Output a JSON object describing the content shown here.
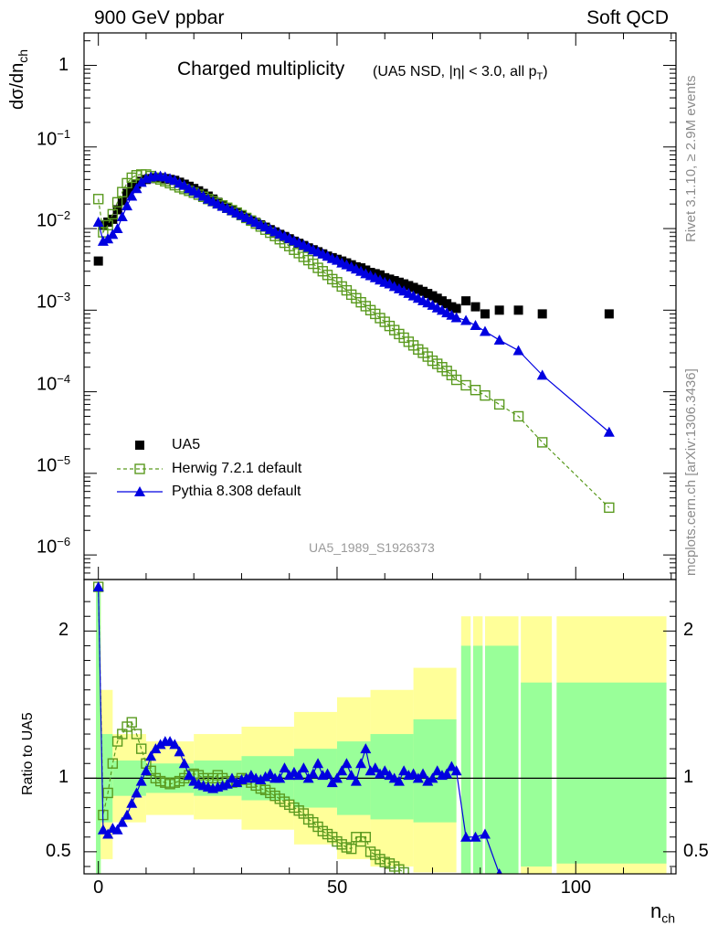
{
  "header": {
    "left": "900 GeV ppbar",
    "right": "Soft QCD",
    "side_top": "Rivet 3.1.10, ≥ 2.9M events",
    "side_bottom": "mcplots.cern.ch [arXiv:1306.3436]"
  },
  "colors": {
    "data": "#000000",
    "herwig": "#5a9a1f",
    "pythia": "#0000e0",
    "band_inner": "#99ff99",
    "band_outer": "#ffff99"
  },
  "icons": {
    "data": "filled-square-marker-icon",
    "herwig": "open-square-marker-icon",
    "pythia": "filled-triangle-marker-icon"
  },
  "chart_data": [
    {
      "type": "scatter",
      "panel": "main",
      "title_main": "Charged multiplicity",
      "title_sub": "(UA5 NSD, |η| < 3.0, all p",
      "title_sub_sub": "T",
      "title_sub_end": ")",
      "ylabel": "dσ/dn",
      "ylabel_sub": "ch",
      "yscale": "log",
      "ylim": [
        5e-07,
        2.5
      ],
      "xlim": [
        -3,
        121
      ],
      "y_ticks": [
        {
          "v": 1,
          "base": "1",
          "exp": ""
        },
        {
          "v": 0.1,
          "base": "10",
          "exp": "−1"
        },
        {
          "v": 0.01,
          "base": "10",
          "exp": "−2"
        },
        {
          "v": 0.001,
          "base": "10",
          "exp": "−3"
        },
        {
          "v": 0.0001,
          "base": "10",
          "exp": "−4"
        },
        {
          "v": 1e-05,
          "base": "10",
          "exp": "−5"
        },
        {
          "v": 1e-06,
          "base": "10",
          "exp": "−6"
        }
      ],
      "analysis_label": "UA5_1989_S1926373",
      "legend": [
        "UA5",
        "Herwig 7.2.1 default",
        "Pythia 8.308 default"
      ],
      "series": [
        {
          "name": "UA5",
          "marker": "filled-square",
          "x": [
            0,
            1,
            2,
            3,
            4,
            5,
            6,
            7,
            8,
            9,
            10,
            11,
            12,
            13,
            14,
            15,
            16,
            17,
            18,
            19,
            20,
            21,
            22,
            23,
            24,
            25,
            26,
            27,
            28,
            29,
            30,
            31,
            32,
            33,
            34,
            35,
            36,
            37,
            38,
            39,
            40,
            41,
            42,
            43,
            44,
            45,
            46,
            47,
            48,
            49,
            50,
            51,
            52,
            53,
            54,
            55,
            56,
            57,
            58,
            59,
            60,
            61,
            62,
            63,
            64,
            65,
            66,
            67,
            68,
            69,
            70,
            71,
            72,
            73,
            74,
            75,
            77,
            79,
            81,
            84,
            88,
            93,
            107
          ],
          "y": [
            0.004,
            0.011,
            0.012,
            0.013,
            0.017,
            0.022,
            0.027,
            0.032,
            0.035,
            0.038,
            0.04,
            0.041,
            0.042,
            0.042,
            0.041,
            0.04,
            0.039,
            0.037,
            0.035,
            0.033,
            0.031,
            0.029,
            0.027,
            0.025,
            0.023,
            0.021,
            0.0195,
            0.018,
            0.0168,
            0.0157,
            0.0146,
            0.0136,
            0.0127,
            0.0119,
            0.0111,
            0.0104,
            0.0097,
            0.0091,
            0.0085,
            0.008,
            0.0075,
            0.007,
            0.0066,
            0.0062,
            0.0058,
            0.0055,
            0.0052,
            0.0049,
            0.0046,
            0.0044,
            0.0042,
            0.004,
            0.0038,
            0.0036,
            0.0034,
            0.0033,
            0.0031,
            0.0029,
            0.0028,
            0.0027,
            0.0025,
            0.0024,
            0.0023,
            0.0022,
            0.0021,
            0.002,
            0.0019,
            0.0018,
            0.0017,
            0.0016,
            0.0015,
            0.0014,
            0.0013,
            0.0012,
            0.0011,
            0.00105,
            0.0013,
            0.0011,
            0.0009,
            0.001,
            0.001,
            0.0009,
            0.0009
          ]
        },
        {
          "name": "Herwig 7.2.1 default",
          "marker": "open-square",
          "x": [
            0,
            1,
            2,
            3,
            4,
            5,
            6,
            7,
            8,
            9,
            10,
            11,
            12,
            13,
            14,
            15,
            16,
            17,
            18,
            19,
            20,
            21,
            22,
            23,
            24,
            25,
            26,
            27,
            28,
            29,
            30,
            31,
            32,
            33,
            34,
            35,
            36,
            37,
            38,
            39,
            40,
            41,
            42,
            43,
            44,
            45,
            46,
            47,
            48,
            49,
            50,
            51,
            52,
            53,
            54,
            55,
            56,
            57,
            58,
            59,
            60,
            61,
            62,
            63,
            64,
            65,
            66,
            67,
            68,
            69,
            70,
            71,
            72,
            73,
            74,
            75,
            77,
            79,
            81,
            84,
            88,
            93,
            107
          ],
          "y": [
            0.023,
            0.009,
            0.011,
            0.015,
            0.021,
            0.028,
            0.036,
            0.042,
            0.045,
            0.046,
            0.046,
            0.044,
            0.042,
            0.04,
            0.038,
            0.036,
            0.034,
            0.032,
            0.0305,
            0.029,
            0.0275,
            0.026,
            0.0245,
            0.023,
            0.0217,
            0.0204,
            0.0192,
            0.018,
            0.0168,
            0.0157,
            0.0146,
            0.0135,
            0.0125,
            0.0115,
            0.0106,
            0.0097,
            0.0089,
            0.0081,
            0.0074,
            0.0067,
            0.0061,
            0.0055,
            0.005,
            0.0045,
            0.0041,
            0.0037,
            0.0033,
            0.003,
            0.0027,
            0.0024,
            0.0022,
            0.00195,
            0.00175,
            0.00155,
            0.0014,
            0.00125,
            0.00112,
            0.001,
            0.0009,
            0.0008,
            0.00072,
            0.00064,
            0.00057,
            0.00051,
            0.00046,
            0.00041,
            0.00037,
            0.00033,
            0.0003,
            0.00027,
            0.00024,
            0.00022,
            0.0002,
            0.00018,
            0.00016,
            0.00014,
            0.00012,
            0.000105,
            9e-05,
            7e-05,
            5e-05,
            2.4e-05,
            3.8e-06
          ]
        },
        {
          "name": "Pythia 8.308 default",
          "marker": "filled-triangle",
          "x": [
            0,
            1,
            2,
            3,
            4,
            5,
            6,
            7,
            8,
            9,
            10,
            11,
            12,
            13,
            14,
            15,
            16,
            17,
            18,
            19,
            20,
            21,
            22,
            23,
            24,
            25,
            26,
            27,
            28,
            29,
            30,
            31,
            32,
            33,
            34,
            35,
            36,
            37,
            38,
            39,
            40,
            41,
            42,
            43,
            44,
            45,
            46,
            47,
            48,
            49,
            50,
            51,
            52,
            53,
            54,
            55,
            56,
            57,
            58,
            59,
            60,
            61,
            62,
            63,
            64,
            65,
            66,
            67,
            68,
            69,
            70,
            71,
            72,
            73,
            74,
            75,
            77,
            79,
            81,
            84,
            88,
            93,
            107
          ],
          "y": [
            0.012,
            0.007,
            0.0075,
            0.0085,
            0.01,
            0.014,
            0.019,
            0.025,
            0.031,
            0.037,
            0.041,
            0.043,
            0.044,
            0.044,
            0.043,
            0.041,
            0.039,
            0.036,
            0.034,
            0.031,
            0.029,
            0.027,
            0.025,
            0.023,
            0.0215,
            0.02,
            0.0188,
            0.0177,
            0.0166,
            0.0156,
            0.0146,
            0.0137,
            0.0128,
            0.012,
            0.0112,
            0.0105,
            0.0098,
            0.0092,
            0.0086,
            0.0081,
            0.0076,
            0.0071,
            0.0067,
            0.0063,
            0.0059,
            0.0055,
            0.0052,
            0.0049,
            0.0046,
            0.0043,
            0.0041,
            0.0038,
            0.0036,
            0.0034,
            0.0032,
            0.003,
            0.0028,
            0.00265,
            0.0025,
            0.00235,
            0.0022,
            0.0021,
            0.00195,
            0.00183,
            0.00172,
            0.00161,
            0.0015,
            0.0014,
            0.00131,
            0.00123,
            0.00115,
            0.00107,
            0.001,
            0.00093,
            0.00087,
            0.00081,
            0.00075,
            0.00065,
            0.00055,
            0.00043,
            0.00032,
            0.00016,
            3.2e-05
          ]
        }
      ]
    },
    {
      "type": "scatter",
      "panel": "ratio",
      "ylabel": "Ratio to UA5",
      "xlabel": "n",
      "xlabel_sub": "ch",
      "ylim": [
        0.35,
        2.35
      ],
      "xlim": [
        -3,
        121
      ],
      "y_ticks": [
        {
          "v": 0.5,
          "label": "0.5"
        },
        {
          "v": 1,
          "label": "1"
        },
        {
          "v": 2,
          "label": "2"
        }
      ],
      "x_ticks": [
        {
          "v": 0,
          "label": "0"
        },
        {
          "v": 50,
          "label": "50"
        },
        {
          "v": 100,
          "label": "100"
        }
      ],
      "bands": [
        {
          "x0": -0.5,
          "x1": 0.5,
          "inner": [
            0.3,
            2.3
          ],
          "outer": [
            0.3,
            2.3
          ]
        },
        {
          "x0": 0.5,
          "x1": 3,
          "inner": [
            0.7,
            1.3
          ],
          "outer": [
            0.45,
            1.6
          ]
        },
        {
          "x0": 3,
          "x1": 10,
          "inner": [
            0.88,
            1.12
          ],
          "outer": [
            0.7,
            1.3
          ]
        },
        {
          "x0": 10,
          "x1": 20,
          "inner": [
            0.9,
            1.1
          ],
          "outer": [
            0.75,
            1.25
          ]
        },
        {
          "x0": 20,
          "x1": 30,
          "inner": [
            0.88,
            1.12
          ],
          "outer": [
            0.72,
            1.3
          ]
        },
        {
          "x0": 30,
          "x1": 41,
          "inner": [
            0.85,
            1.15
          ],
          "outer": [
            0.65,
            1.35
          ]
        },
        {
          "x0": 41,
          "x1": 50,
          "inner": [
            0.8,
            1.2
          ],
          "outer": [
            0.55,
            1.45
          ]
        },
        {
          "x0": 50,
          "x1": 57,
          "inner": [
            0.75,
            1.25
          ],
          "outer": [
            0.45,
            1.55
          ]
        },
        {
          "x0": 57,
          "x1": 66,
          "inner": [
            0.72,
            1.3
          ],
          "outer": [
            0.4,
            1.6
          ]
        },
        {
          "x0": 66,
          "x1": 75,
          "inner": [
            0.7,
            1.4
          ],
          "outer": [
            0.36,
            1.75
          ]
        },
        {
          "x0": 76,
          "x1": 78,
          "inner": [
            0.35,
            1.9
          ],
          "outer": [
            0.35,
            2.1
          ]
        },
        {
          "x0": 78.5,
          "x1": 80.5,
          "inner": [
            0.35,
            1.9
          ],
          "outer": [
            0.35,
            2.1
          ]
        },
        {
          "x0": 81,
          "x1": 88,
          "inner": [
            0.35,
            1.9
          ],
          "outer": [
            0.35,
            2.1
          ]
        },
        {
          "x0": 88.5,
          "x1": 95,
          "inner": [
            0.4,
            1.65
          ],
          "outer": [
            0.35,
            2.1
          ]
        },
        {
          "x0": 96,
          "x1": 119,
          "inner": [
            0.42,
            1.65
          ],
          "outer": [
            0.35,
            2.1
          ]
        }
      ],
      "series": [
        {
          "name": "Herwig 7.2.1 default",
          "x": [
            0,
            1,
            2,
            3,
            4,
            5,
            6,
            7,
            8,
            9,
            10,
            11,
            12,
            13,
            14,
            15,
            16,
            17,
            18,
            19,
            20,
            21,
            22,
            23,
            24,
            25,
            26,
            27,
            28,
            29,
            30,
            31,
            32,
            33,
            34,
            35,
            36,
            37,
            38,
            39,
            40,
            41,
            42,
            43,
            44,
            45,
            46,
            47,
            48,
            49,
            50,
            51,
            52,
            53,
            54,
            55,
            56,
            57,
            58,
            59,
            60,
            61,
            62,
            63,
            64
          ],
          "y": [
            2.3,
            0.75,
            0.9,
            1.1,
            1.25,
            1.3,
            1.35,
            1.38,
            1.3,
            1.2,
            1.1,
            1.05,
            1.0,
            0.98,
            0.97,
            0.96,
            0.97,
            0.98,
            1.0,
            1.02,
            1.03,
            1.02,
            1.0,
            0.98,
            1.0,
            1.02,
            1.0,
            0.98,
            0.97,
            0.98,
            1.0,
            0.99,
            0.97,
            0.95,
            0.93,
            0.92,
            0.9,
            0.88,
            0.86,
            0.84,
            0.82,
            0.8,
            0.78,
            0.76,
            0.72,
            0.7,
            0.67,
            0.64,
            0.62,
            0.6,
            0.57,
            0.55,
            0.53,
            0.52,
            0.6,
            0.57,
            0.6,
            0.5,
            0.48,
            0.45,
            0.43,
            0.42,
            0.4,
            0.38,
            0.36
          ]
        },
        {
          "name": "Pythia 8.308 default",
          "x": [
            0,
            1,
            2,
            3,
            4,
            5,
            6,
            7,
            8,
            9,
            10,
            11,
            12,
            13,
            14,
            15,
            16,
            17,
            18,
            19,
            20,
            21,
            22,
            23,
            24,
            25,
            26,
            27,
            28,
            29,
            30,
            31,
            32,
            33,
            34,
            35,
            36,
            37,
            38,
            39,
            40,
            41,
            42,
            43,
            44,
            45,
            46,
            47,
            48,
            49,
            50,
            51,
            52,
            53,
            54,
            55,
            56,
            57,
            58,
            59,
            60,
            61,
            62,
            63,
            64,
            65,
            66,
            67,
            68,
            69,
            70,
            71,
            72,
            73,
            74,
            75,
            77,
            79,
            81,
            84
          ],
          "y": [
            2.3,
            0.65,
            0.62,
            0.66,
            0.65,
            0.7,
            0.75,
            0.83,
            0.9,
            0.98,
            1.05,
            1.15,
            1.2,
            1.23,
            1.25,
            1.25,
            1.23,
            1.18,
            1.1,
            1.02,
            0.98,
            0.96,
            0.95,
            0.94,
            0.93,
            0.94,
            0.95,
            0.96,
            1.0,
            0.97,
            0.99,
            1.0,
            1.02,
            1.0,
            0.99,
            1.01,
            1.03,
            1.0,
            1.0,
            1.07,
            1.02,
            1.04,
            1.02,
            1.07,
            1.0,
            1.03,
            1.1,
            1.02,
            1.03,
            0.97,
            1.0,
            1.05,
            1.1,
            1.02,
            0.98,
            1.1,
            1.2,
            1.05,
            1.07,
            1.03,
            1.05,
            1.02,
            1.0,
            0.98,
            1.05,
            1.02,
            1.03,
            1.0,
            1.03,
            0.98,
            1.0,
            1.05,
            1.02,
            1.03,
            1.08,
            1.05,
            0.6,
            0.6,
            0.62,
            0.35
          ]
        }
      ]
    }
  ]
}
